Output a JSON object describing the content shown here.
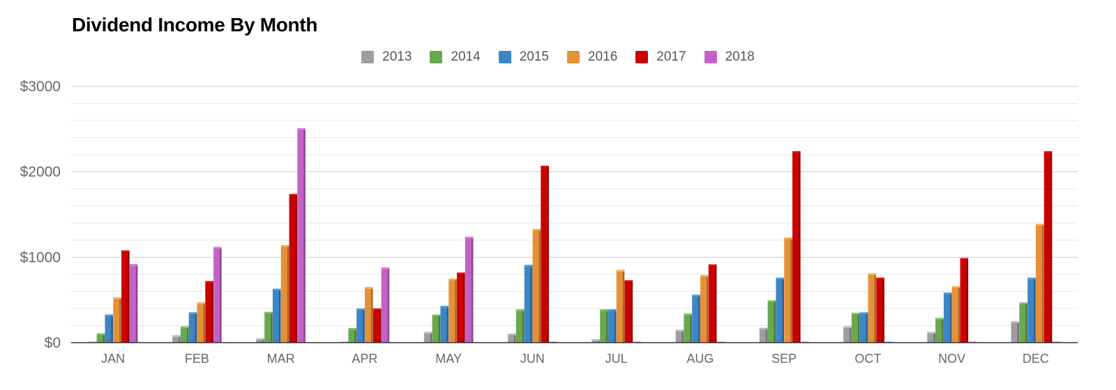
{
  "chart_data": {
    "type": "bar",
    "title": "Dividend Income By Month",
    "xlabel": "",
    "ylabel": "",
    "ylim": [
      0,
      3000
    ],
    "yticks": [
      0,
      1000,
      2000,
      3000
    ],
    "ytick_labels": [
      "$0",
      "$1000",
      "$2000",
      "$3000"
    ],
    "grid": true,
    "legend_position": "top-center",
    "categories": [
      "JAN",
      "FEB",
      "MAR",
      "APR",
      "MAY",
      "JUN",
      "JUL",
      "AUG",
      "SEP",
      "OCT",
      "NOV",
      "DEC"
    ],
    "series": [
      {
        "name": "2013",
        "color": "#9e9e9e",
        "values": [
          0,
          85,
          50,
          0,
          125,
          105,
          40,
          150,
          175,
          190,
          125,
          250
        ]
      },
      {
        "name": "2014",
        "color": "#6aa84f",
        "values": [
          110,
          190,
          360,
          170,
          330,
          390,
          390,
          340,
          495,
          350,
          290,
          470
        ]
      },
      {
        "name": "2015",
        "color": "#3d85c6",
        "values": [
          330,
          355,
          630,
          400,
          430,
          910,
          390,
          560,
          760,
          355,
          585,
          760
        ]
      },
      {
        "name": "2016",
        "color": "#e69138",
        "values": [
          530,
          470,
          1140,
          650,
          750,
          1330,
          850,
          790,
          1230,
          810,
          660,
          1390
        ]
      },
      {
        "name": "2017",
        "color": "#cc0000",
        "values": [
          1080,
          720,
          1740,
          400,
          820,
          2070,
          730,
          915,
          2240,
          760,
          990,
          2240
        ]
      },
      {
        "name": "2018",
        "color": "#c462c4",
        "values": [
          920,
          1120,
          2510,
          880,
          1240,
          0,
          0,
          0,
          0,
          0,
          0,
          0
        ]
      }
    ]
  }
}
